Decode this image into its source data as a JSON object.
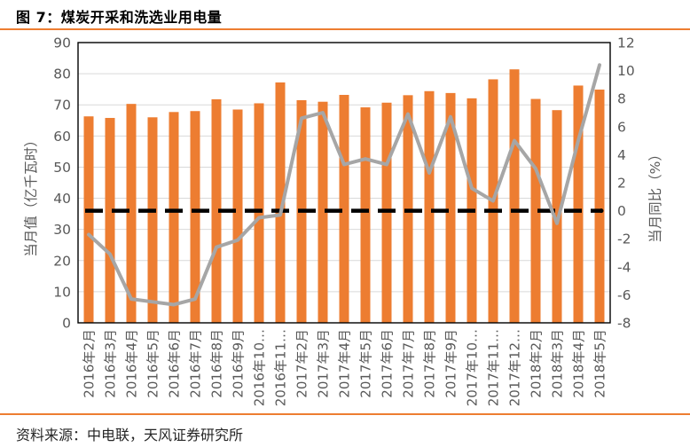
{
  "figure": {
    "title": "图 7：煤炭开采和洗选业用电量",
    "source": "资料来源：中电联，天风证券研究所"
  },
  "chart_data": {
    "type": "bar",
    "subtype": "combo-bar-line-dual-axis",
    "title": "煤炭开采和洗选业用电量",
    "grid": true,
    "legend_position": "none",
    "categories": [
      "2016年2月",
      "2016年3月",
      "2016年4月",
      "2016年5月",
      "2016年6月",
      "2016年7月",
      "2016年8月",
      "2016年9月",
      "2016年10…",
      "2016年11…",
      "2017年2月",
      "2017年3月",
      "2017年4月",
      "2017年5月",
      "2017年6月",
      "2017年7月",
      "2017年8月",
      "2017年9月",
      "2017年10…",
      "2017年11…",
      "2017年12…",
      "2018年2月",
      "2018年3月",
      "2018年4月",
      "2018年5月"
    ],
    "series": [
      {
        "name": "当月值（亿千瓦时）",
        "type": "bar",
        "axis": "left",
        "color": "#ED7D31",
        "values": [
          66.3,
          65.8,
          70.3,
          66.0,
          67.7,
          68.0,
          71.8,
          68.5,
          70.5,
          77.2,
          71.5,
          71.0,
          73.2,
          69.2,
          70.7,
          73.1,
          74.4,
          73.8,
          72.1,
          78.2,
          81.4,
          71.9,
          68.3,
          76.2,
          74.9
        ]
      },
      {
        "name": "当月同比（%）",
        "type": "line",
        "axis": "right",
        "color": "#A6A6A6",
        "values": [
          -1.7,
          -3.1,
          -6.3,
          -6.5,
          -6.7,
          -6.3,
          -2.6,
          -2.1,
          -0.5,
          -0.3,
          6.6,
          7.0,
          3.3,
          3.7,
          3.3,
          6.9,
          2.7,
          6.7,
          1.6,
          0.7,
          5.0,
          3.0,
          -0.9,
          5.0,
          10.4
        ]
      },
      {
        "name": "零增长虚线参考线",
        "type": "refline",
        "axis": "right",
        "color": "#000000",
        "value": 0
      }
    ],
    "left_axis": {
      "label": "当月值（亿千瓦时）",
      "min": 0,
      "max": 90,
      "ticks": [
        0,
        10,
        20,
        30,
        40,
        50,
        60,
        70,
        80,
        90
      ]
    },
    "right_axis": {
      "label": "当月同比（%）",
      "min": -8,
      "max": 12,
      "ticks": [
        -8,
        -6,
        -4,
        -2,
        0,
        2,
        4,
        6,
        8,
        10,
        12
      ]
    }
  },
  "style": {
    "bar_color": "#ED7D31",
    "line_color": "#A6A6A6",
    "refline_color": "#000000",
    "grid_color": "#D9D9D9",
    "axis_text_color": "#595959",
    "plot_border_color": "#000000",
    "accent_rule_color": "#ED7D31"
  }
}
